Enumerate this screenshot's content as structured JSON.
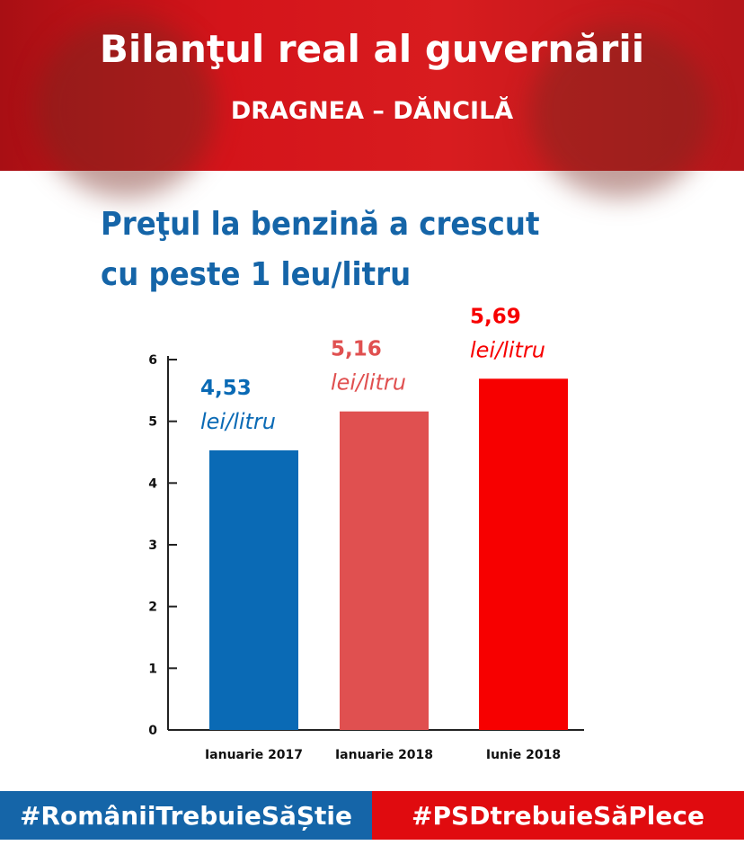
{
  "header": {
    "title": "Bilanţul real al guvernării",
    "subtitle": "DRAGNEA – DĂNCILĂ"
  },
  "headline": {
    "line1": "Preţul la benzină a crescut",
    "line2": "cu peste 1 leu/litru"
  },
  "colors": {
    "header_red": "#d4141a",
    "blue": "#0a6ab5",
    "pink": "#e05050",
    "red": "#f70000",
    "title_blue": "#1565a8"
  },
  "chart_data": {
    "type": "bar",
    "categories": [
      "Ianuarie 2017",
      "Ianuarie 2018",
      "Iunie 2018"
    ],
    "values": [
      4.53,
      5.16,
      5.69
    ],
    "value_labels": [
      "4,53",
      "5,16",
      "5,69"
    ],
    "unit_label": "lei/litru",
    "bar_colors": [
      "#0a6ab5",
      "#e05050",
      "#f70000"
    ],
    "ylim": [
      0,
      6
    ],
    "yticks": [
      "0",
      "1",
      "2",
      "3",
      "4",
      "5",
      "6"
    ],
    "grid": false
  },
  "footer": {
    "left": "#RomâniiTrebuieSăȘtie",
    "right": "#PSDtrebuieSăPlece"
  }
}
